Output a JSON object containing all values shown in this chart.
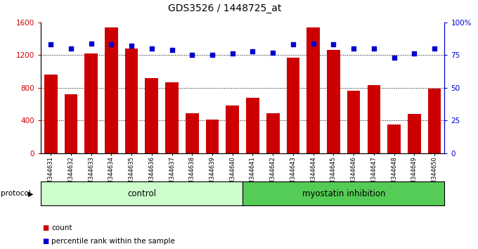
{
  "title": "GDS3526 / 1448725_at",
  "categories": [
    "GSM344631",
    "GSM344632",
    "GSM344633",
    "GSM344634",
    "GSM344635",
    "GSM344636",
    "GSM344637",
    "GSM344638",
    "GSM344639",
    "GSM344640",
    "GSM344641",
    "GSM344642",
    "GSM344643",
    "GSM344644",
    "GSM344645",
    "GSM344646",
    "GSM344647",
    "GSM344648",
    "GSM344649",
    "GSM344650"
  ],
  "bar_values": [
    960,
    720,
    1220,
    1540,
    1280,
    920,
    870,
    490,
    410,
    580,
    680,
    490,
    1170,
    1540,
    1260,
    760,
    830,
    350,
    480,
    790
  ],
  "percentile_values": [
    83,
    80,
    84,
    83,
    82,
    80,
    79,
    75,
    75,
    76,
    78,
    77,
    83,
    84,
    83,
    80,
    80,
    73,
    76,
    80
  ],
  "bar_color": "#cc0000",
  "percentile_color": "#0000cc",
  "control_count": 10,
  "myostatin_count": 10,
  "control_color": "#ccffcc",
  "myostatin_color": "#55cc55",
  "ylim_left": [
    0,
    1600
  ],
  "ylim_right": [
    0,
    100
  ],
  "yticks_left": [
    0,
    400,
    800,
    1200,
    1600
  ],
  "ytick_labels_left": [
    "0",
    "400",
    "800",
    "1200",
    "1600"
  ],
  "yticks_right": [
    0,
    25,
    50,
    75,
    100
  ],
  "ytick_labels_right": [
    "0",
    "25",
    "50",
    "75",
    "100%"
  ],
  "grid_values": [
    400,
    800,
    1200
  ],
  "legend_count_label": "count",
  "legend_percentile_label": "percentile rank within the sample",
  "protocol_label": "protocol",
  "control_label": "control",
  "myostatin_label": "myostatin inhibition"
}
